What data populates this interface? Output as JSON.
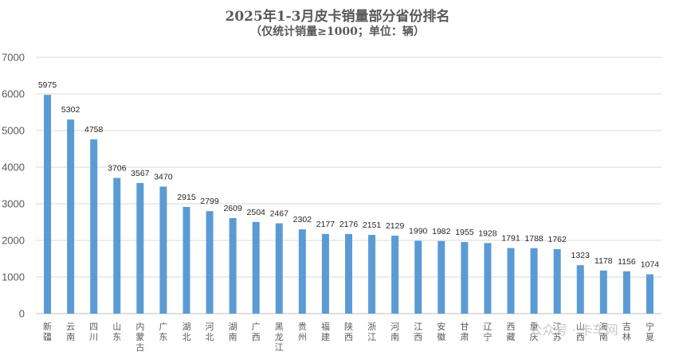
{
  "chart_data": {
    "type": "bar",
    "title": "2025年1-3月皮卡销量部分省份排名",
    "subtitle": "（仅统计销量≥1000；单位：辆）",
    "categories": [
      "新疆",
      "云南",
      "四川",
      "山东",
      "内蒙古",
      "广东",
      "湖北",
      "河北",
      "湖南",
      "广西",
      "黑龙江",
      "贵州",
      "福建",
      "陕西",
      "浙江",
      "河南",
      "江西",
      "安徽",
      "甘肃",
      "辽宁",
      "西藏",
      "重庆",
      "江苏",
      "山西",
      "海南",
      "吉林",
      "宁夏"
    ],
    "values": [
      5975,
      5302,
      4758,
      3706,
      3567,
      3470,
      2915,
      2799,
      2609,
      2504,
      2467,
      2302,
      2177,
      2176,
      2151,
      2129,
      1990,
      1982,
      1955,
      1928,
      1791,
      1788,
      1762,
      1323,
      1178,
      1156,
      1074
    ],
    "yticks": [
      "0",
      "1000",
      "2000",
      "3000",
      "4000",
      "5000",
      "6000",
      "7000"
    ],
    "ylim": [
      0,
      7000
    ],
    "grid": true,
    "legend": false,
    "bar_color": "#5b9bd5"
  },
  "watermark": "公众号 · 卡车网"
}
